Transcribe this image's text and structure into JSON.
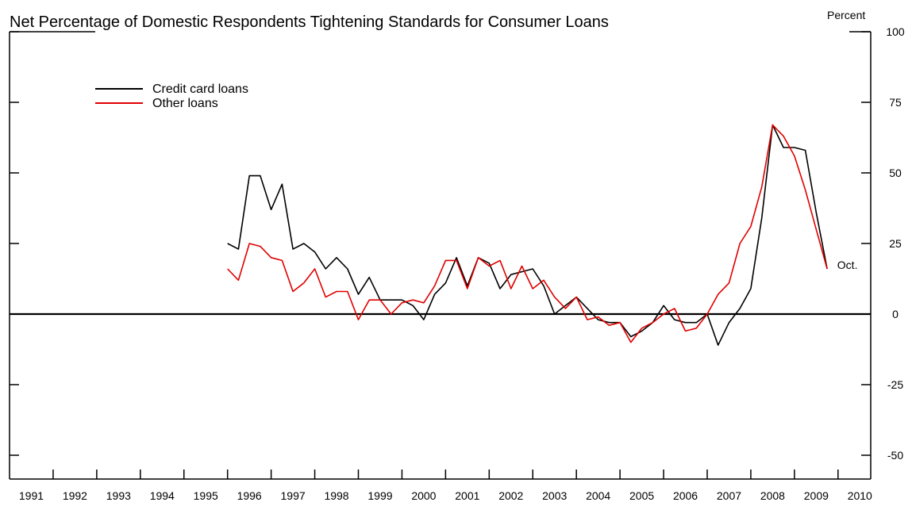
{
  "chart_data": {
    "type": "line",
    "title": "Net Percentage of Domestic Respondents Tightening Standards for Consumer Loans",
    "ylabel": "Percent",
    "xlabel": "",
    "ylim": [
      -60,
      100
    ],
    "yticks": [
      100,
      75,
      50,
      25,
      0,
      -25,
      -50
    ],
    "x_tick_labels": [
      "1991",
      "1992",
      "1993",
      "1994",
      "1995",
      "1996",
      "1997",
      "1998",
      "1999",
      "2000",
      "2001",
      "2002",
      "2003",
      "2004",
      "2005",
      "2006",
      "2007",
      "2008",
      "2009",
      "2010"
    ],
    "xlim": [
      1991.0,
      2010.75
    ],
    "grid": false,
    "legend": "top-left",
    "annotation": {
      "text": "Oct.",
      "x": 2009.8,
      "y": 20
    },
    "series": [
      {
        "name": "Credit card loans",
        "color": "#000000",
        "x": [
          1996.0,
          1996.25,
          1996.5,
          1996.75,
          1997.0,
          1997.25,
          1997.5,
          1997.75,
          1998.0,
          1998.25,
          1998.5,
          1998.75,
          1999.0,
          1999.25,
          1999.5,
          1999.75,
          2000.0,
          2000.25,
          2000.5,
          2000.75,
          2001.0,
          2001.25,
          2001.5,
          2001.75,
          2002.0,
          2002.25,
          2002.5,
          2002.75,
          2003.0,
          2003.25,
          2003.5,
          2003.75,
          2004.0,
          2004.25,
          2004.5,
          2004.75,
          2005.0,
          2005.25,
          2005.5,
          2005.75,
          2006.0,
          2006.25,
          2006.5,
          2006.75,
          2007.0,
          2007.25,
          2007.5,
          2007.75,
          2008.0,
          2008.25,
          2008.5,
          2008.75,
          2009.0,
          2009.25,
          2009.5,
          2009.75
        ],
        "values": [
          25,
          23,
          49,
          49,
          37,
          46,
          23,
          25,
          22,
          16,
          20,
          16,
          7,
          13,
          5,
          5,
          5,
          3,
          -2,
          7,
          11,
          20,
          10,
          20,
          18,
          9,
          14,
          15,
          16,
          10,
          0,
          3,
          6,
          2,
          -2,
          -3,
          -3,
          -8,
          -6,
          -3,
          3,
          -2,
          -3,
          -3,
          0,
          -11,
          -3,
          2,
          9,
          34,
          67,
          59,
          59,
          58,
          36,
          16
        ]
      },
      {
        "name": "Other loans",
        "color": "#e00000",
        "x": [
          1996.0,
          1996.25,
          1996.5,
          1996.75,
          1997.0,
          1997.25,
          1997.5,
          1997.75,
          1998.0,
          1998.25,
          1998.5,
          1998.75,
          1999.0,
          1999.25,
          1999.5,
          1999.75,
          2000.0,
          2000.25,
          2000.5,
          2000.75,
          2001.0,
          2001.25,
          2001.5,
          2001.75,
          2002.0,
          2002.25,
          2002.5,
          2002.75,
          2003.0,
          2003.25,
          2003.5,
          2003.75,
          2004.0,
          2004.25,
          2004.5,
          2004.75,
          2005.0,
          2005.25,
          2005.5,
          2005.75,
          2006.0,
          2006.25,
          2006.5,
          2006.75,
          2007.0,
          2007.25,
          2007.5,
          2007.75,
          2008.0,
          2008.25,
          2008.5,
          2008.75,
          2009.0,
          2009.25,
          2009.5,
          2009.75
        ],
        "values": [
          16,
          12,
          25,
          24,
          20,
          19,
          8,
          11,
          16,
          6,
          8,
          8,
          -2,
          5,
          5,
          0,
          4,
          5,
          4,
          10,
          19,
          19,
          9,
          20,
          17,
          19,
          9,
          17,
          9,
          12,
          6,
          2,
          6,
          -2,
          -1,
          -4,
          -3,
          -10,
          -5,
          -3,
          0,
          2,
          -6,
          -5,
          0,
          7,
          11,
          25,
          31,
          45,
          67,
          63,
          56,
          44,
          30,
          16
        ]
      }
    ]
  }
}
